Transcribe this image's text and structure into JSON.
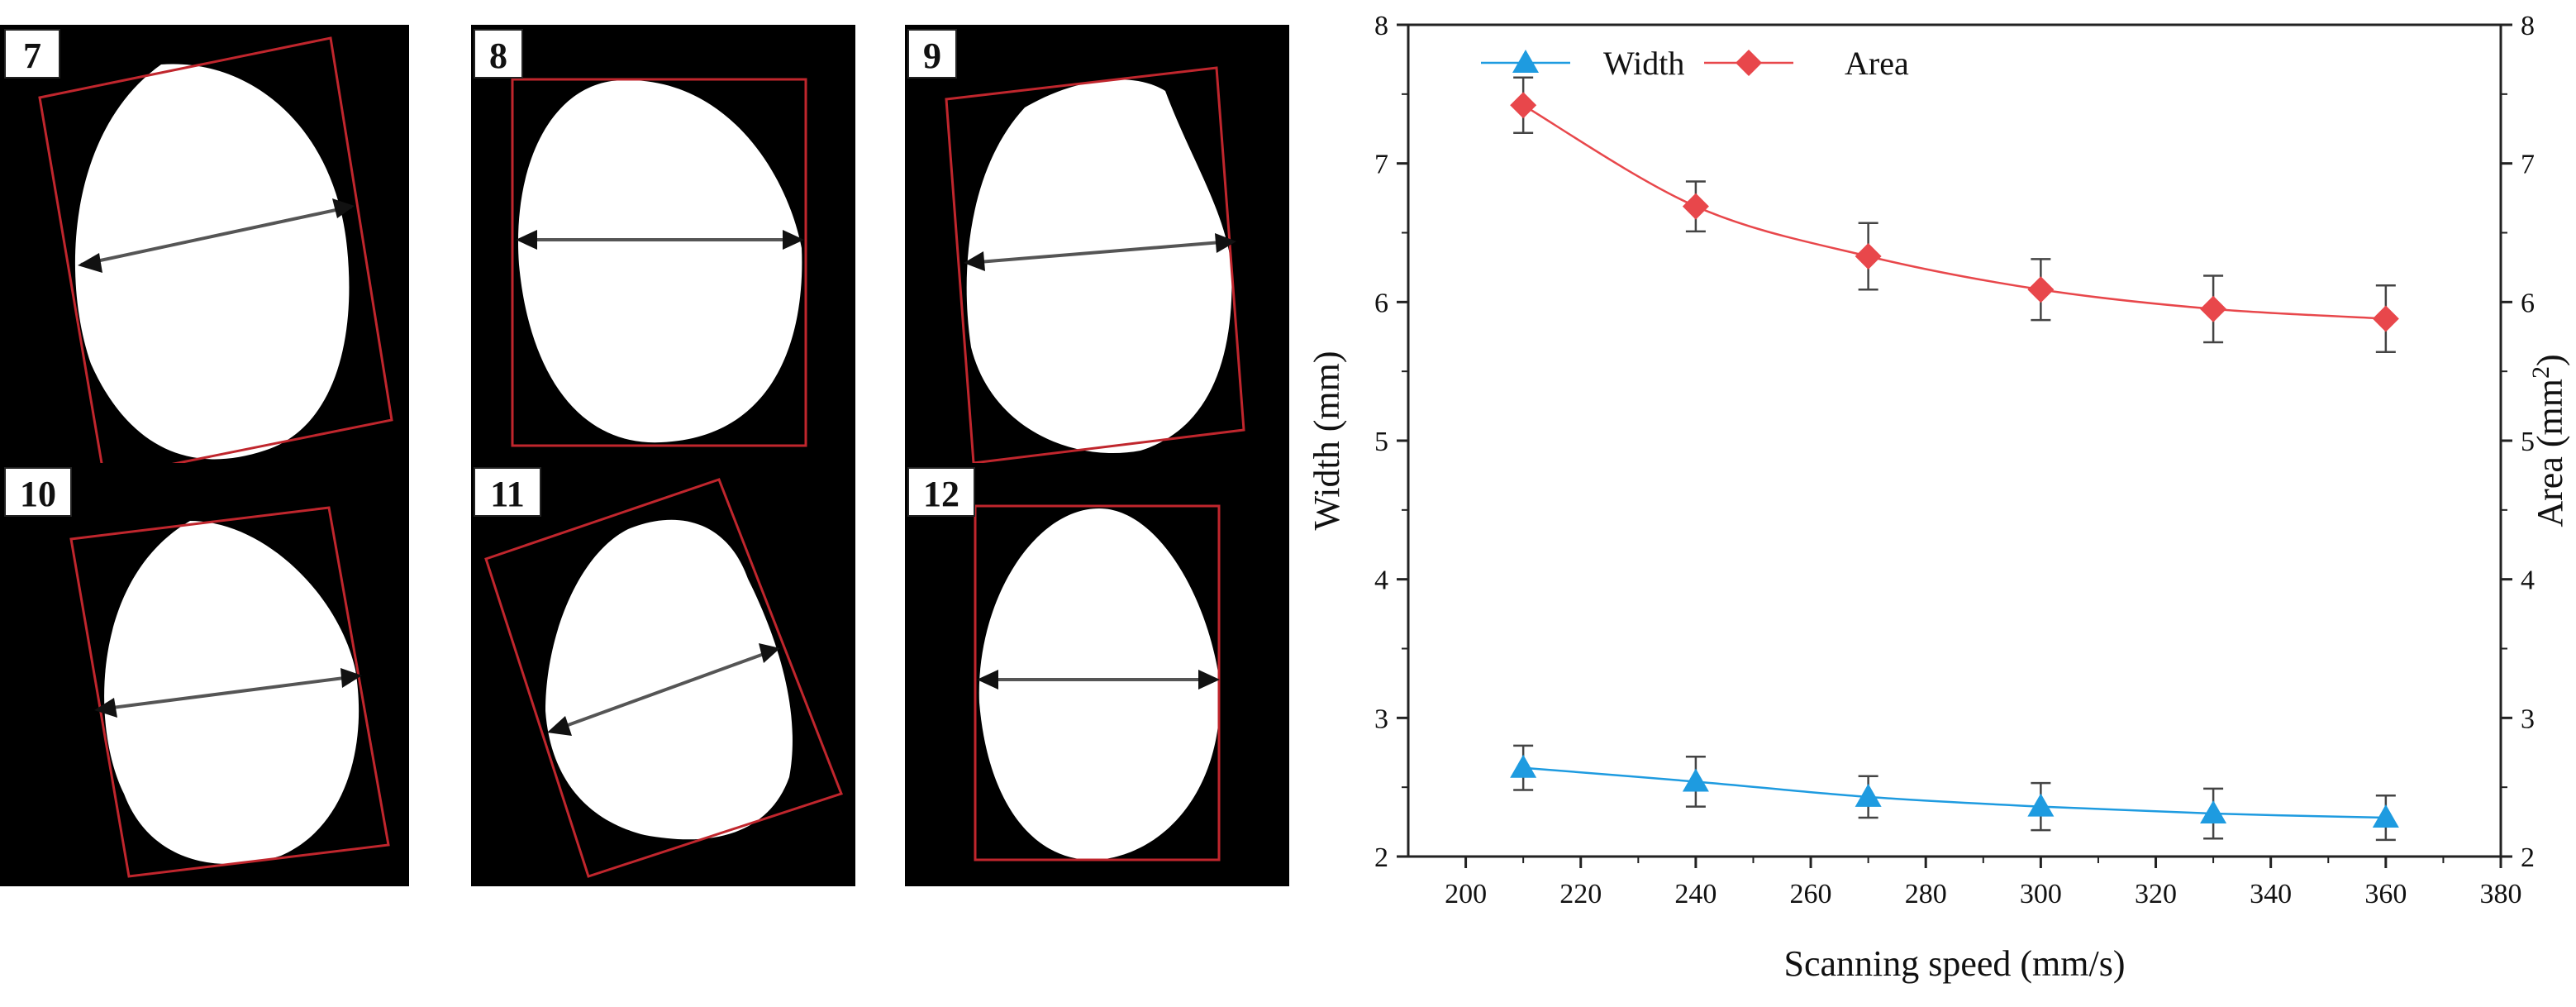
{
  "panels": [
    {
      "label": "7"
    },
    {
      "label": "8"
    },
    {
      "label": "9"
    },
    {
      "label": "10"
    },
    {
      "label": "11"
    },
    {
      "label": "12"
    }
  ],
  "chart_data": {
    "type": "line",
    "title": "",
    "xlabel": "Scanning speed (mm/s)",
    "ylabel": "Width  (mm)",
    "ylabel_right": "Area (mm",
    "ylabel_right_sup": "2",
    "ylabel_right_close": ")",
    "xlim": [
      190,
      380
    ],
    "ylim": [
      2,
      8
    ],
    "ylim_right": [
      2,
      8
    ],
    "x_ticks": [
      "200",
      "220",
      "240",
      "260",
      "280",
      "300",
      "320",
      "340",
      "360",
      "380"
    ],
    "y_ticks": [
      "2",
      "3",
      "4",
      "5",
      "6",
      "7",
      "8"
    ],
    "y_ticks_right": [
      "2",
      "3",
      "4",
      "5",
      "6",
      "7",
      "8"
    ],
    "x": [
      210,
      240,
      270,
      300,
      330,
      360
    ],
    "legend_position": "top-left",
    "series": [
      {
        "name": "Width",
        "axis": "left",
        "marker": "triangle",
        "color": "#1E9BE0",
        "values": [
          2.64,
          2.54,
          2.43,
          2.36,
          2.31,
          2.28
        ],
        "errors": [
          0.16,
          0.18,
          0.15,
          0.17,
          0.18,
          0.16
        ]
      },
      {
        "name": "Area",
        "axis": "right",
        "marker": "diamond",
        "color": "#E8474B",
        "values": [
          7.42,
          6.69,
          6.33,
          6.09,
          5.95,
          5.88
        ],
        "errors": [
          0.2,
          0.18,
          0.24,
          0.22,
          0.24,
          0.24
        ]
      }
    ]
  }
}
